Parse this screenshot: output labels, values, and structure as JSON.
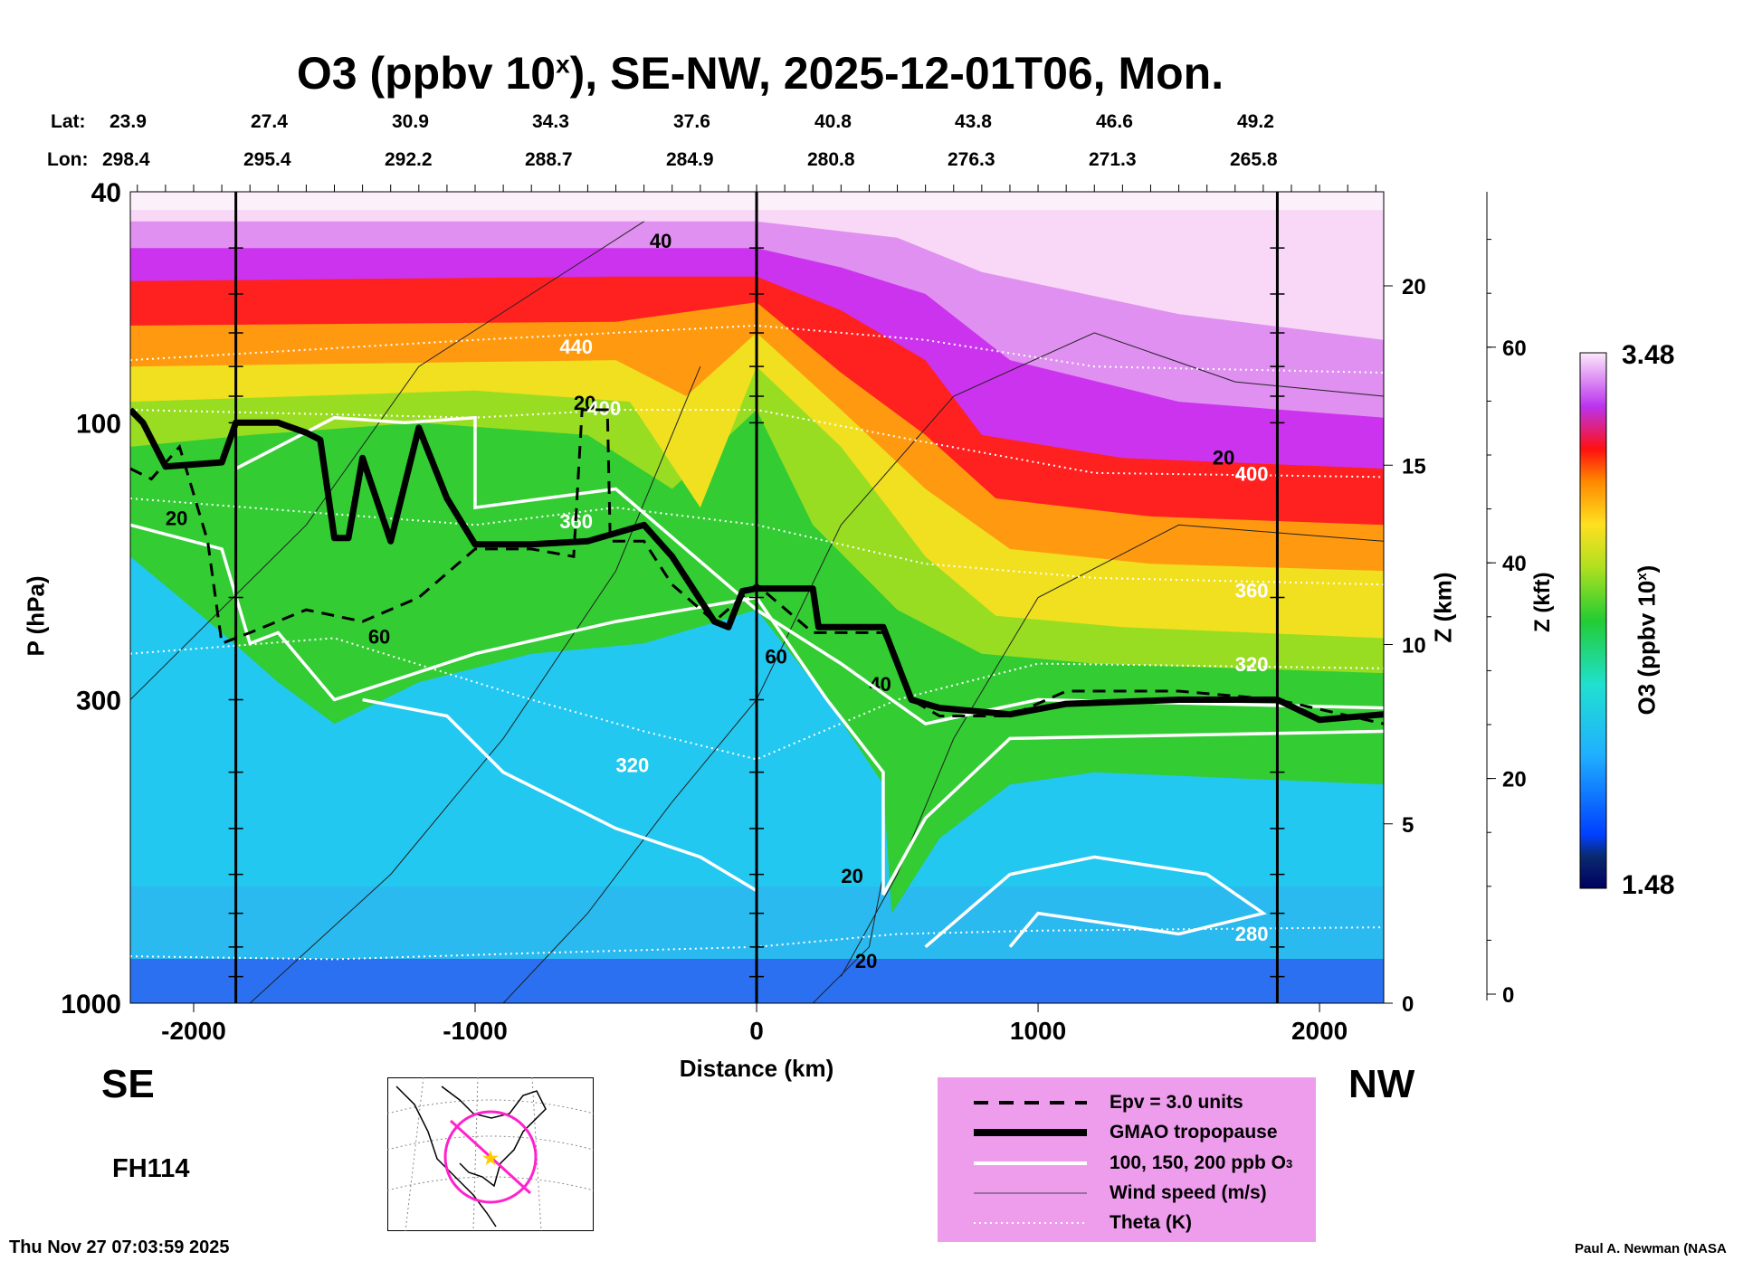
{
  "title": {
    "prefix": "O3 (ppbv 10",
    "sup": "x",
    "suffix": "), SE-NW, 2025-12-01T06, Mon."
  },
  "lat_label": "Lat:",
  "lon_label": "Lon:",
  "lats": [
    "23.9",
    "27.4",
    "30.9",
    "34.3",
    "37.6",
    "40.8",
    "43.8",
    "46.6",
    "49.2"
  ],
  "lons": [
    "298.4",
    "295.4",
    "292.2",
    "288.7",
    "284.9",
    "280.8",
    "276.3",
    "271.3",
    "265.8"
  ],
  "direction_left": "SE",
  "direction_right": "NW",
  "forecast_hour": "FH114",
  "timestamp": "Thu Nov 27 07:03:59 2025",
  "credit": "Paul A. Newman (NASA",
  "legend": {
    "items": [
      {
        "label": "Epv = 3.0 units",
        "style": "dashed"
      },
      {
        "label": "GMAO tropopause",
        "style": "thick"
      },
      {
        "label": "100, 150, 200 ppb O",
        "sub": "3",
        "style": "white"
      },
      {
        "label": "Wind speed (m/s)",
        "style": "thin"
      },
      {
        "label": "Theta (K)",
        "style": "dotted"
      }
    ]
  },
  "colors": {
    "legend_bg": "#ee9dec",
    "map_track": "#ff22cc",
    "map_star": "#ffcc00"
  },
  "chart_data": {
    "type": "heatmap",
    "title": "O3 (ppbv 10^x), SE-NW, 2025-12-01T06, Mon.",
    "xlabel": "Distance (km)",
    "ylabel": "P (hPa)",
    "y2label": "Z (km)",
    "y3label": "Z (kft)",
    "colorbar_label": "O3 (ppbv 10^x)",
    "xlim": [
      -2225,
      2228
    ],
    "ylim": [
      1000,
      40
    ],
    "yscale": "log",
    "x_ticks": [
      "-2000",
      "-1000",
      "0",
      "1000",
      "2000"
    ],
    "x_tick_values": [
      -2000,
      -1000,
      0,
      1000,
      2000
    ],
    "y_ticks": [
      "40",
      "100",
      "300",
      "1000"
    ],
    "y_tick_values": [
      40,
      100,
      300,
      1000
    ],
    "zkm_ticks": [
      "0",
      "5",
      "10",
      "15",
      "20"
    ],
    "zkm_tick_values": [
      0,
      5,
      10,
      15,
      20
    ],
    "zkft_ticks": [
      "0",
      "20",
      "40",
      "60"
    ],
    "zkft_tick_values": [
      0,
      20,
      40,
      60
    ],
    "colorbar_range": [
      "1.48",
      "3.48"
    ],
    "colorbar_values": [
      1.48,
      3.48
    ],
    "section_markers_km": [
      -1850,
      0,
      1850
    ],
    "tropopause": [
      [
        -2225,
        95
      ],
      [
        -2180,
        100
      ],
      [
        -2100,
        119
      ],
      [
        -1900,
        117
      ],
      [
        -1850,
        100
      ],
      [
        -1700,
        100
      ],
      [
        -1600,
        104
      ],
      [
        -1550,
        107
      ],
      [
        -1500,
        158
      ],
      [
        -1450,
        158
      ],
      [
        -1400,
        115
      ],
      [
        -1300,
        160
      ],
      [
        -1200,
        102
      ],
      [
        -1100,
        135
      ],
      [
        -1000,
        162
      ],
      [
        -800,
        162
      ],
      [
        -600,
        160
      ],
      [
        -400,
        150
      ],
      [
        -300,
        170
      ],
      [
        -150,
        220
      ],
      [
        -100,
        225
      ],
      [
        -50,
        195
      ],
      [
        0,
        193
      ],
      [
        200,
        193
      ],
      [
        220,
        225
      ],
      [
        450,
        225
      ],
      [
        550,
        300
      ],
      [
        650,
        310
      ],
      [
        900,
        318
      ],
      [
        1100,
        305
      ],
      [
        1500,
        300
      ],
      [
        1850,
        300
      ],
      [
        2000,
        325
      ],
      [
        2228,
        318
      ]
    ],
    "epv": [
      [
        -2225,
        120
      ],
      [
        -2150,
        125
      ],
      [
        -2050,
        110
      ],
      [
        -1950,
        160
      ],
      [
        -1900,
        240
      ],
      [
        -1800,
        230
      ],
      [
        -1600,
        210
      ],
      [
        -1400,
        220
      ],
      [
        -1200,
        200
      ],
      [
        -1000,
        165
      ],
      [
        -800,
        165
      ],
      [
        -650,
        170
      ],
      [
        -620,
        95
      ],
      [
        -530,
        95
      ],
      [
        -520,
        160
      ],
      [
        -400,
        160
      ],
      [
        -300,
        190
      ],
      [
        -150,
        220
      ],
      [
        0,
        190
      ],
      [
        200,
        230
      ],
      [
        450,
        230
      ],
      [
        550,
        300
      ],
      [
        650,
        320
      ],
      [
        900,
        320
      ],
      [
        1100,
        290
      ],
      [
        1500,
        290
      ],
      [
        1850,
        300
      ],
      [
        2228,
        330
      ]
    ],
    "o3_levels": [
      {
        "value": 2.1,
        "color": "#33cc33",
        "boundary": [
          [
            -2225,
            170
          ],
          [
            -1900,
            230
          ],
          [
            -1700,
            280
          ],
          [
            -1500,
            330
          ],
          [
            -1200,
            280
          ],
          [
            -800,
            250
          ],
          [
            -400,
            240
          ],
          [
            0,
            210
          ],
          [
            250,
            300
          ],
          [
            450,
            420
          ],
          [
            480,
            700
          ],
          [
            650,
            520
          ],
          [
            900,
            420
          ],
          [
            1200,
            400
          ],
          [
            2228,
            420
          ]
        ]
      },
      {
        "value": 2.3,
        "color": "#99dd22",
        "boundary": [
          [
            -2225,
            110
          ],
          [
            -1800,
            105
          ],
          [
            -1200,
            100
          ],
          [
            -600,
            105
          ],
          [
            -300,
            130
          ],
          [
            0,
            95
          ],
          [
            200,
            150
          ],
          [
            500,
            210
          ],
          [
            800,
            250
          ],
          [
            1200,
            260
          ],
          [
            2228,
            270
          ]
        ]
      },
      {
        "value": 2.45,
        "color": "#f0e020",
        "boundary": [
          [
            -2225,
            92
          ],
          [
            -1000,
            88
          ],
          [
            -450,
            92
          ],
          [
            -200,
            140
          ],
          [
            0,
            80
          ],
          [
            300,
            110
          ],
          [
            600,
            170
          ],
          [
            850,
            215
          ],
          [
            1300,
            225
          ],
          [
            2228,
            235
          ]
        ]
      },
      {
        "value": 2.6,
        "color": "#ff9a10",
        "boundary": [
          [
            -2225,
            80
          ],
          [
            -500,
            78
          ],
          [
            -250,
            90
          ],
          [
            0,
            70
          ],
          [
            300,
            95
          ],
          [
            600,
            130
          ],
          [
            900,
            165
          ],
          [
            1400,
            175
          ],
          [
            2228,
            180
          ]
        ]
      },
      {
        "value": 2.8,
        "color": "#ff2020",
        "boundary": [
          [
            -2225,
            68
          ],
          [
            -500,
            67
          ],
          [
            0,
            62
          ],
          [
            300,
            82
          ],
          [
            600,
            105
          ],
          [
            850,
            135
          ],
          [
            1400,
            145
          ],
          [
            2228,
            150
          ]
        ]
      },
      {
        "value": 3.0,
        "color": "#cc33ee",
        "boundary": [
          [
            -2225,
            57
          ],
          [
            -500,
            56
          ],
          [
            0,
            56
          ],
          [
            300,
            64
          ],
          [
            600,
            78
          ],
          [
            800,
            105
          ],
          [
            1300,
            115
          ],
          [
            2228,
            120
          ]
        ]
      },
      {
        "value": 3.2,
        "color": "#e090f0",
        "boundary": [
          [
            -2225,
            50
          ],
          [
            0,
            50
          ],
          [
            300,
            54
          ],
          [
            600,
            60
          ],
          [
            900,
            78
          ],
          [
            1500,
            92
          ],
          [
            2228,
            98
          ]
        ]
      },
      {
        "value": 3.4,
        "color": "#f8d8f6",
        "boundary": [
          [
            -2225,
            45
          ],
          [
            0,
            45
          ],
          [
            500,
            48
          ],
          [
            800,
            55
          ],
          [
            1500,
            65
          ],
          [
            2228,
            72
          ]
        ]
      }
    ],
    "theta": [
      {
        "label": "440",
        "points": [
          [
            -2225,
            78
          ],
          [
            -1000,
            72
          ],
          [
            0,
            68
          ],
          [
            600,
            72
          ],
          [
            1200,
            80
          ],
          [
            2228,
            82
          ]
        ]
      },
      {
        "label": "400",
        "points": [
          [
            -2225,
            95
          ],
          [
            -1000,
            98
          ],
          [
            -500,
            95
          ],
          [
            0,
            95
          ],
          [
            600,
            108
          ],
          [
            1200,
            122
          ],
          [
            2228,
            124
          ]
        ]
      },
      {
        "label": "360",
        "points": [
          [
            -2225,
            135
          ],
          [
            -1000,
            150
          ],
          [
            -500,
            140
          ],
          [
            0,
            150
          ],
          [
            600,
            175
          ],
          [
            1200,
            185
          ],
          [
            2228,
            190
          ]
        ]
      },
      {
        "label": "320",
        "points": [
          [
            -2225,
            250
          ],
          [
            -1500,
            235
          ],
          [
            -800,
            300
          ],
          [
            -400,
            340
          ],
          [
            0,
            380
          ],
          [
            500,
            300
          ],
          [
            1000,
            260
          ],
          [
            2228,
            265
          ]
        ]
      },
      {
        "label": "280",
        "points": [
          [
            -2225,
            830
          ],
          [
            -1500,
            840
          ],
          [
            -800,
            820
          ],
          [
            0,
            800
          ],
          [
            500,
            760
          ],
          [
            1000,
            750
          ],
          [
            2228,
            740
          ]
        ]
      }
    ],
    "wind_labels": [
      "20",
      "40",
      "20",
      "20",
      "60",
      "60",
      "40",
      "20",
      "20"
    ]
  }
}
